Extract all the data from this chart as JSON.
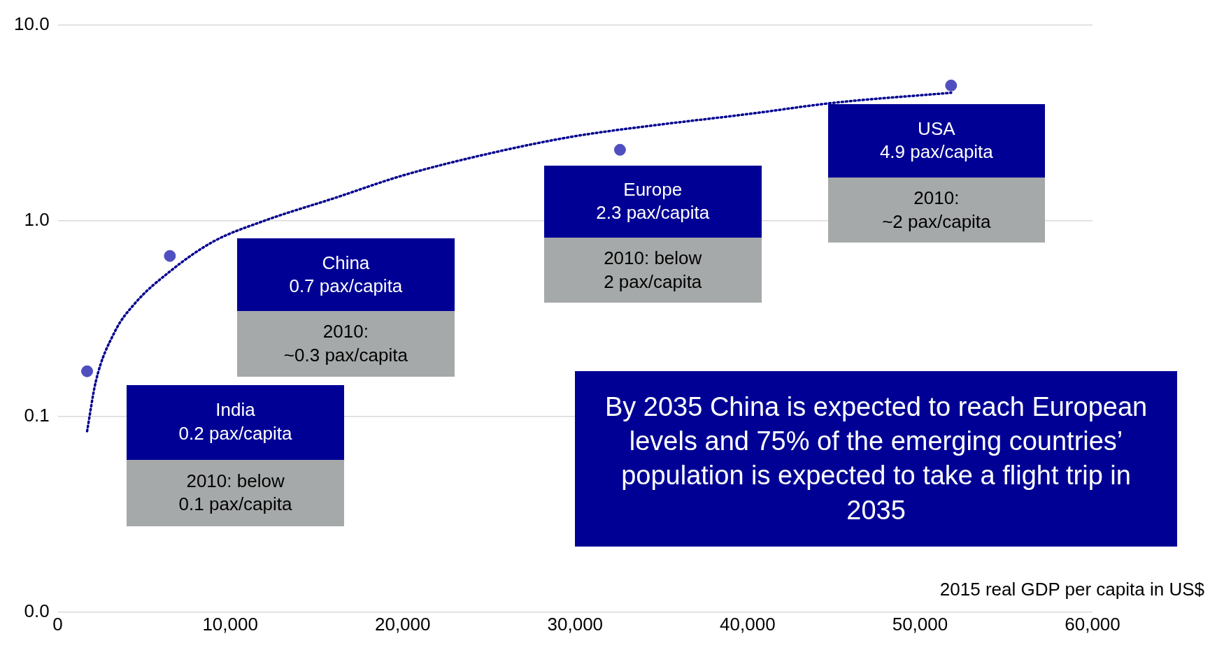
{
  "chart_data": {
    "type": "scatter",
    "xlabel": "2015 real GDP per capita in US$",
    "xlim": [
      0,
      60000
    ],
    "xticks": [
      {
        "value": 0,
        "label": "0"
      },
      {
        "value": 10000,
        "label": "10,000"
      },
      {
        "value": 20000,
        "label": "20,000"
      },
      {
        "value": 30000,
        "label": "30,000"
      },
      {
        "value": 40000,
        "label": "40,000"
      },
      {
        "value": 50000,
        "label": "50,000"
      },
      {
        "value": 60000,
        "label": "60,000"
      }
    ],
    "ylim": [
      0.01,
      10
    ],
    "yticks": [
      {
        "value": 0.01,
        "label": "0.0"
      },
      {
        "value": 0.1,
        "label": "0.1"
      },
      {
        "value": 1,
        "label": "1.0"
      },
      {
        "value": 10,
        "label": "10.0"
      }
    ],
    "log": "y",
    "grid": "y",
    "legend": false,
    "series": [
      {
        "type": "scatter",
        "marker": "circle",
        "color": "#4f4fc0",
        "x": [
          1700,
          6500,
          32600,
          51800
        ],
        "values": [
          0.17,
          0.66,
          2.3,
          4.9
        ]
      },
      {
        "type": "line",
        "marker": "none",
        "line_style": "dotted",
        "color": "#000090",
        "x": [
          1700,
          2200,
          3300,
          4500,
          6500,
          9000,
          12000,
          16000,
          20000,
          25000,
          30000,
          35000,
          40000,
          45000,
          51800
        ],
        "values": [
          0.084,
          0.15,
          0.27,
          0.38,
          0.55,
          0.78,
          1.0,
          1.3,
          1.7,
          2.2,
          2.7,
          3.1,
          3.5,
          4.0,
          4.5
        ]
      }
    ],
    "annotations": [
      "India\n0.2 pax/capita",
      "2010: below\n0.1 pax/capita",
      "China\n0.7 pax/capita",
      "2010:\n~0.3 pax/capita",
      "Europe\n2.3 pax/capita",
      "2010: below\n2 pax/capita",
      "USA\n4.9 pax/capita",
      "2010:\n~2 pax/capita",
      "By 2035 China is expected to reach European levels and 75% of the emerging countries’ population is expected to take a flight trip in 2035"
    ]
  }
}
